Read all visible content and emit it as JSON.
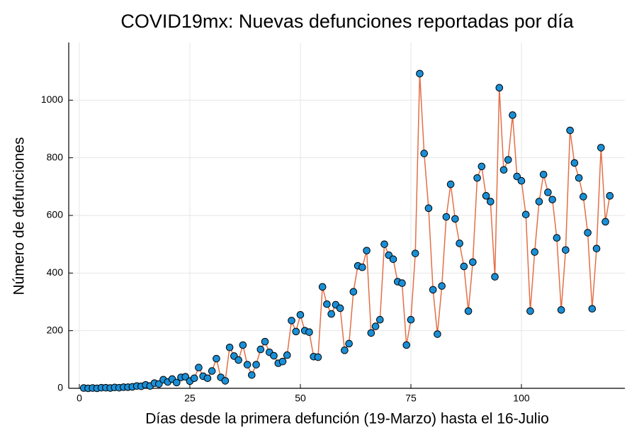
{
  "chart_data": {
    "type": "line",
    "title": "COVID19mx: Nuevas defunciones reportadas por día",
    "xlabel": "Días desde la primera defunción (19-Marzo) hasta el 16-Julio",
    "ylabel": "Número de defunciones",
    "x": [
      1,
      2,
      3,
      4,
      5,
      6,
      7,
      8,
      9,
      10,
      11,
      12,
      13,
      14,
      15,
      16,
      17,
      18,
      19,
      20,
      21,
      22,
      23,
      24,
      25,
      26,
      27,
      28,
      29,
      30,
      31,
      32,
      33,
      34,
      35,
      36,
      37,
      38,
      39,
      40,
      41,
      42,
      43,
      44,
      45,
      46,
      47,
      48,
      49,
      50,
      51,
      52,
      53,
      54,
      55,
      56,
      57,
      58,
      59,
      60,
      61,
      62,
      63,
      64,
      65,
      66,
      67,
      68,
      69,
      70,
      71,
      72,
      73,
      74,
      75,
      76,
      77,
      78,
      79,
      80,
      81,
      82,
      83,
      84,
      85,
      86,
      87,
      88,
      89,
      90,
      91,
      92,
      93,
      94,
      95,
      96,
      97,
      98,
      99,
      100,
      101,
      102,
      103,
      104,
      105,
      106,
      107,
      108,
      109,
      110,
      111,
      112,
      113,
      114,
      115,
      116,
      117,
      118,
      119,
      120
    ],
    "series": [
      {
        "line_color": "#e26f46",
        "marker_color": "#1a8fd6",
        "values": [
          1,
          0,
          1,
          0,
          2,
          2,
          1,
          3,
          2,
          4,
          4,
          5,
          8,
          7,
          12,
          8,
          18,
          15,
          30,
          22,
          32,
          20,
          38,
          40,
          25,
          35,
          72,
          42,
          35,
          60,
          103,
          38,
          26,
          142,
          112,
          98,
          150,
          82,
          46,
          82,
          135,
          162,
          125,
          113,
          87,
          93,
          115,
          235,
          197,
          255,
          200,
          195,
          110,
          108,
          352,
          292,
          258,
          290,
          278,
          132,
          155,
          335,
          425,
          420,
          478,
          192,
          215,
          238,
          500,
          462,
          448,
          370,
          365,
          150,
          238,
          468,
          1092,
          815,
          625,
          342,
          188,
          355,
          595,
          708,
          588,
          503,
          423,
          268,
          438,
          730,
          770,
          668,
          648,
          387,
          1043,
          758,
          793,
          948,
          735,
          720,
          603,
          268,
          473,
          648,
          742,
          680,
          655,
          522,
          272,
          480,
          895,
          782,
          730,
          665,
          540,
          276,
          485,
          835,
          578,
          668
        ]
      }
    ],
    "xlim": [
      -2.4,
      123.4
    ],
    "ylim": [
      0,
      1200
    ],
    "xticks": [
      0,
      25,
      50,
      75,
      100
    ],
    "yticks": [
      0,
      200,
      400,
      600,
      800,
      1000
    ],
    "grid": true
  }
}
